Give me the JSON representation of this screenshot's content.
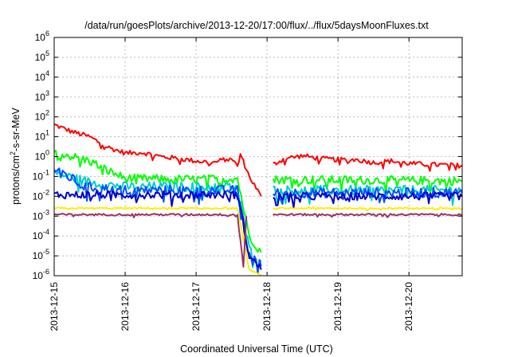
{
  "chart_data": {
    "type": "line",
    "title": "/data/run/goesPlots/archive/2013-12-20/17:00/flux/../flux/5daysMoonFluxes.txt",
    "xlabel": "Coordinated Universal Time (UTC)",
    "ylabel": {
      "base": "protons/cm",
      "sup": "2",
      "rest": "-s-sr-MeV"
    },
    "x_ticks": [
      "2013-12-15",
      "2013-12-16",
      "2013-12-17",
      "2013-12-18",
      "2013-12-19",
      "2013-12-20"
    ],
    "xlim": [
      "2013-12-15",
      "2013-12-20T18:00"
    ],
    "y_scale": "log",
    "ylim": [
      1e-06,
      1000000.0
    ],
    "y_ticks": [
      {
        "base": "10",
        "exp": "-6",
        "value": 1e-06
      },
      {
        "base": "10",
        "exp": "-5",
        "value": 1e-05
      },
      {
        "base": "10",
        "exp": "-4",
        "value": 0.0001
      },
      {
        "base": "10",
        "exp": "-3",
        "value": 0.001
      },
      {
        "base": "10",
        "exp": "-2",
        "value": 0.01
      },
      {
        "base": "10",
        "exp": "-1",
        "value": 0.1
      },
      {
        "base": "10",
        "exp": "0",
        "value": 1
      },
      {
        "base": "10",
        "exp": "1",
        "value": 10
      },
      {
        "base": "10",
        "exp": "2",
        "value": 100
      },
      {
        "base": "10",
        "exp": "3",
        "value": 1000
      },
      {
        "base": "10",
        "exp": "4",
        "value": 10000
      },
      {
        "base": "10",
        "exp": "5",
        "value": 100000
      },
      {
        "base": "10",
        "exp": "6",
        "value": 1000000
      }
    ],
    "grid": true,
    "data_gap": [
      "2013-12-17T22:00",
      "2013-12-18T02:00"
    ],
    "series": [
      {
        "color": "#ff0000",
        "points": [
          [
            "2013-12-15T00:00",
            40
          ],
          [
            "2013-12-15T06:00",
            18
          ],
          [
            "2013-12-15T12:00",
            10
          ],
          [
            "2013-12-15T18:00",
            3
          ],
          [
            "2013-12-16T00:00",
            1.5
          ],
          [
            "2013-12-16T06:00",
            1.6
          ],
          [
            "2013-12-16T12:00",
            1.0
          ],
          [
            "2013-12-16T18:00",
            0.8
          ],
          [
            "2013-12-17T00:00",
            0.6
          ],
          [
            "2013-12-17T06:00",
            0.5
          ],
          [
            "2013-12-17T12:00",
            0.9
          ],
          [
            "2013-12-17T14:00",
            0.3
          ],
          [
            "2013-12-17T15:00",
            1.3
          ],
          [
            "2013-12-17T18:00",
            0.1
          ],
          [
            "2013-12-17T22:00",
            0.01
          ]
        ],
        "points2": [
          [
            "2013-12-18T02:00",
            0.4
          ],
          [
            "2013-12-18T06:00",
            0.8
          ],
          [
            "2013-12-18T12:00",
            1.1
          ],
          [
            "2013-12-18T18:00",
            0.8
          ],
          [
            "2013-12-19T00:00",
            0.7
          ],
          [
            "2013-12-19T06:00",
            0.7
          ],
          [
            "2013-12-19T12:00",
            0.5
          ],
          [
            "2013-12-19T18:00",
            0.6
          ],
          [
            "2013-12-20T00:00",
            0.45
          ],
          [
            "2013-12-20T06:00",
            0.4
          ],
          [
            "2013-12-20T12:00",
            0.38
          ],
          [
            "2013-12-20T18:00",
            0.35
          ]
        ]
      },
      {
        "color": "#00ff00",
        "points": [
          [
            "2013-12-15T00:00",
            2.0
          ],
          [
            "2013-12-15T06:00",
            1.0
          ],
          [
            "2013-12-15T12:00",
            0.6
          ],
          [
            "2013-12-15T18:00",
            0.2
          ],
          [
            "2013-12-16T00:00",
            0.08
          ],
          [
            "2013-12-17T00:00",
            0.07
          ],
          [
            "2013-12-17T14:00",
            0.08
          ],
          [
            "2013-12-17T18:00",
            0.0001
          ],
          [
            "2013-12-17T22:00",
            1.5e-05
          ]
        ],
        "points2": [
          [
            "2013-12-18T02:00",
            0.07
          ],
          [
            "2013-12-20T18:00",
            0.06
          ]
        ]
      },
      {
        "color": "#00cccc",
        "points": [
          [
            "2013-12-15T00:00",
            0.15
          ],
          [
            "2013-12-15T12:00",
            0.05
          ],
          [
            "2013-12-16T00:00",
            0.03
          ],
          [
            "2013-12-17T14:00",
            0.03
          ],
          [
            "2013-12-17T18:00",
            2e-05
          ],
          [
            "2013-12-17T22:00",
            6e-06
          ]
        ],
        "points2": [
          [
            "2013-12-18T02:00",
            0.02
          ],
          [
            "2013-12-20T18:00",
            0.02
          ]
        ]
      },
      {
        "color": "#0050ff",
        "points": [
          [
            "2013-12-15T00:00",
            0.25
          ],
          [
            "2013-12-15T04:00",
            0.12
          ],
          [
            "2013-12-15T10:00",
            0.03
          ],
          [
            "2013-12-16T00:00",
            0.02
          ],
          [
            "2013-12-17T14:00",
            0.02
          ],
          [
            "2013-12-17T18:00",
            1.5e-05
          ],
          [
            "2013-12-17T22:00",
            3e-06
          ]
        ],
        "points2": [
          [
            "2013-12-18T02:00",
            0.015
          ],
          [
            "2013-12-20T18:00",
            0.015
          ]
        ]
      },
      {
        "color": "#0000cc",
        "points": [
          [
            "2013-12-15T00:00",
            0.012
          ],
          [
            "2013-12-16T00:00",
            0.012
          ],
          [
            "2013-12-17T14:00",
            0.012
          ],
          [
            "2013-12-17T18:00",
            1e-05
          ],
          [
            "2013-12-17T22:00",
            2e-06
          ]
        ],
        "points2": [
          [
            "2013-12-18T02:00",
            0.01
          ],
          [
            "2013-12-20T18:00",
            0.01
          ]
        ]
      },
      {
        "color": "#ffee00",
        "points": [
          [
            "2013-12-15T00:00",
            0.0025
          ],
          [
            "2013-12-17T14:00",
            0.0025
          ],
          [
            "2013-12-17T18:00",
            2e-06
          ],
          [
            "2013-12-17T22:00",
            1e-06
          ]
        ],
        "points2": [
          [
            "2013-12-18T02:00",
            0.0025
          ],
          [
            "2013-12-20T18:00",
            0.0025
          ]
        ]
      },
      {
        "color": "#993366",
        "points": [
          [
            "2013-12-15T00:00",
            0.0012
          ],
          [
            "2013-12-17T14:00",
            0.0012
          ],
          [
            "2013-12-17T16:00",
            3e-06
          ],
          [
            "2013-12-17T17:00",
            0.001
          ]
        ],
        "points2": [
          [
            "2013-12-18T02:00",
            0.0012
          ],
          [
            "2013-12-20T18:00",
            0.0012
          ]
        ]
      }
    ]
  }
}
